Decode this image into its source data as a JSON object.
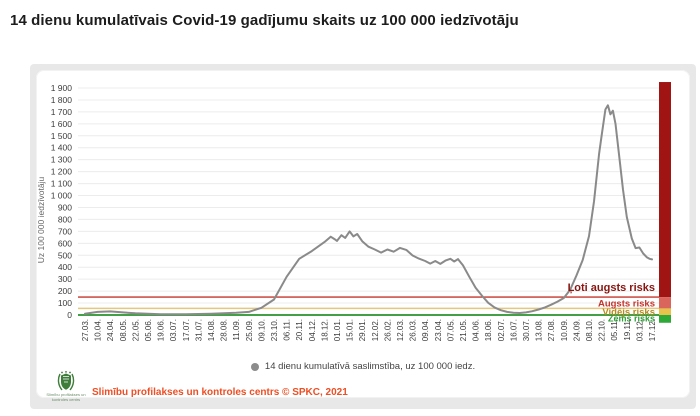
{
  "page": {
    "title": "14 dienu kumulatīvais Covid-19 gadījumu skaits uz 100 000 iedzīvotāju"
  },
  "legend": {
    "label": "14 dienu kumulatīvā saslimstība, uz 100 000 iedz.",
    "marker_color": "#8c8c8c"
  },
  "footer": {
    "source": "Slimību profilakses un kontroles centrs © SPKC, 2021",
    "logo_caption": "Slimību profilakses un kontroles centrs"
  },
  "chart_data": {
    "type": "line",
    "title": "14 dienu kumulatīvais Covid-19 gadījumu skaits uz 100 000 iedzīvotāju",
    "xlabel": "",
    "ylabel": "Uz 100 000 iedzīvotāju",
    "ylim": [
      0,
      1900
    ],
    "ytick_step": 100,
    "grid": true,
    "legend_position": "bottom",
    "categories": [
      "27.03.",
      "10.04.",
      "24.04.",
      "08.05.",
      "22.05.",
      "05.06.",
      "19.06.",
      "03.07.",
      "17.07.",
      "31.07.",
      "14.08.",
      "28.08.",
      "11.09.",
      "25.09.",
      "09.10.",
      "23.10.",
      "06.11.",
      "20.11.",
      "04.12.",
      "18.12.",
      "01.01.",
      "15.01.",
      "29.01.",
      "12.02.",
      "26.02.",
      "12.03.",
      "26.03.",
      "09.04.",
      "23.04.",
      "07.05.",
      "21.05.",
      "04.06.",
      "18.06.",
      "02.07.",
      "16.07.",
      "30.07.",
      "13.08.",
      "27.08.",
      "10.09.",
      "24.09.",
      "08.10.",
      "22.10.",
      "05.11.",
      "19.11.",
      "03.12.",
      "17.12."
    ],
    "series": [
      {
        "name": "14 dienu kumulatīvā saslimstība, uz 100 000 iedz.",
        "color": "#8a8a8a",
        "points": [
          [
            0,
            10
          ],
          [
            1,
            26
          ],
          [
            2,
            30
          ],
          [
            3,
            22
          ],
          [
            4,
            14
          ],
          [
            5,
            10
          ],
          [
            6,
            7
          ],
          [
            7,
            6
          ],
          [
            8,
            6
          ],
          [
            9,
            8
          ],
          [
            10,
            11
          ],
          [
            11,
            15
          ],
          [
            12,
            18
          ],
          [
            13,
            26
          ],
          [
            14,
            60
          ],
          [
            15,
            130
          ],
          [
            16,
            320
          ],
          [
            17,
            470
          ],
          [
            18,
            535
          ],
          [
            19,
            610
          ],
          [
            19.5,
            655
          ],
          [
            19.8,
            635
          ],
          [
            20,
            620
          ],
          [
            20.35,
            668
          ],
          [
            20.65,
            645
          ],
          [
            21,
            700
          ],
          [
            21.3,
            658
          ],
          [
            21.6,
            678
          ],
          [
            22,
            618
          ],
          [
            22.5,
            572
          ],
          [
            23,
            548
          ],
          [
            23.5,
            522
          ],
          [
            24,
            548
          ],
          [
            24.5,
            530
          ],
          [
            25,
            562
          ],
          [
            25.5,
            545
          ],
          [
            26,
            498
          ],
          [
            26.5,
            472
          ],
          [
            27,
            452
          ],
          [
            27.4,
            430
          ],
          [
            27.8,
            452
          ],
          [
            28.2,
            428
          ],
          [
            28.6,
            455
          ],
          [
            29,
            470
          ],
          [
            29.3,
            448
          ],
          [
            29.6,
            468
          ],
          [
            30,
            415
          ],
          [
            30.5,
            320
          ],
          [
            31,
            228
          ],
          [
            31.5,
            162
          ],
          [
            32,
            102
          ],
          [
            32.5,
            64
          ],
          [
            33,
            40
          ],
          [
            33.5,
            26
          ],
          [
            34,
            19
          ],
          [
            34.5,
            17
          ],
          [
            35,
            22
          ],
          [
            35.5,
            32
          ],
          [
            36,
            46
          ],
          [
            36.5,
            64
          ],
          [
            37,
            86
          ],
          [
            37.5,
            112
          ],
          [
            38,
            142
          ],
          [
            38.5,
            210
          ],
          [
            39,
            330
          ],
          [
            39.5,
            460
          ],
          [
            40,
            660
          ],
          [
            40.4,
            950
          ],
          [
            40.8,
            1350
          ],
          [
            41,
            1500
          ],
          [
            41.3,
            1720
          ],
          [
            41.5,
            1755
          ],
          [
            41.7,
            1680
          ],
          [
            41.9,
            1710
          ],
          [
            42.1,
            1600
          ],
          [
            42.4,
            1330
          ],
          [
            42.7,
            1050
          ],
          [
            43,
            820
          ],
          [
            43.4,
            640
          ],
          [
            43.7,
            560
          ],
          [
            44,
            565
          ],
          [
            44.3,
            515
          ],
          [
            44.6,
            482
          ],
          [
            44.8,
            470
          ],
          [
            45,
            465
          ]
        ]
      }
    ],
    "threshold_lines": [
      {
        "name": "augsts-risks-line",
        "value": 150,
        "color": "#c5352c",
        "width": 1.3
      },
      {
        "name": "videjs-risks-line",
        "value": 55,
        "color": "#e4c87e",
        "width": 1.5
      },
      {
        "name": "zems-risks-line",
        "value": 0,
        "color": "#43a047",
        "width": 2
      }
    ],
    "risk_labels": [
      {
        "text": "Ļoti augsts risks",
        "color": "#8a1510",
        "at": 235,
        "size": 11
      },
      {
        "text": "Augsts risks",
        "color": "#c5352c",
        "at": 100,
        "size": 9.5
      },
      {
        "text": "Vidējs risks",
        "color": "#b68a1e",
        "at": 27,
        "size": 9.5
      },
      {
        "text": "Zems risks",
        "color": "#2e9e36",
        "at": -27,
        "size": 9
      }
    ],
    "risk_bar": {
      "segments": [
        {
          "name": "loti-augsts",
          "color": "#a01414",
          "from": 1950,
          "to": 150
        },
        {
          "name": "augsts",
          "color": "#d9655c",
          "from": 150,
          "to": 55
        },
        {
          "name": "videjs",
          "color": "#e7c34c",
          "from": 55,
          "to": 0
        },
        {
          "name": "zems",
          "color": "#2ea836",
          "from": 0,
          "to": -65
        }
      ]
    }
  }
}
